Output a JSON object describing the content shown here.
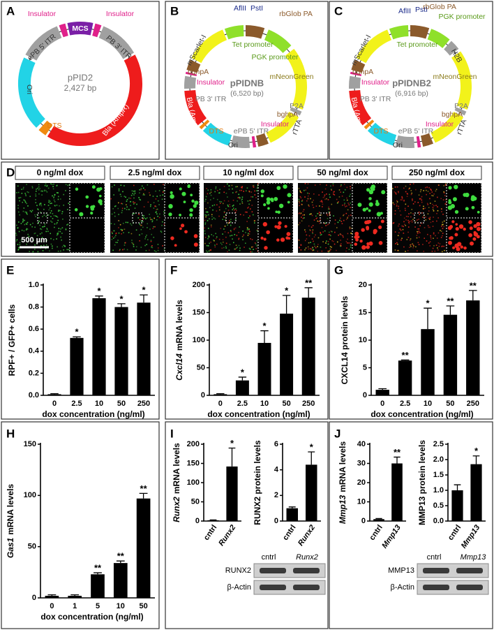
{
  "plasmid_maps": [
    {
      "label": "A",
      "labels": [
        "Insulator",
        "Insulator",
        "MCS",
        "ePB 5' ITR",
        "PB 3' ITR",
        "pPID2",
        "2,427 bp",
        "Ori",
        "DTS",
        "Bla (AmpR)"
      ]
    },
    {
      "label": "B",
      "labels": [
        "AflII",
        "PstI",
        "rbGlob PA",
        "Tet promoter",
        "PGK promoter",
        "mScarlet-I",
        "bghpA",
        "Insulator",
        "pPIDNB",
        "(6,520 bp)",
        "mNeonGreen",
        "PB 3' ITR",
        "P2A",
        "Bla (AmpR)",
        "DTS",
        "ePB 5' ITR",
        "Insulator",
        "bghpA",
        "rTTA",
        "Ori"
      ]
    },
    {
      "label": "C",
      "labels": [
        "AflII",
        "PstI",
        "rbGlob PA",
        "PGK promoter",
        "Tet promoter",
        "mScarlet-I",
        "H2B",
        "bghpA",
        "Insulator",
        "pPIDNB2",
        "(6,916 bp)",
        "mNeonGreen",
        "PB 3' ITR",
        "P2A",
        "Bla (AmpR)",
        "DTS",
        "ePB 5' ITR",
        "Insulator",
        "bghpA",
        "rTTA",
        "Ori"
      ]
    }
  ],
  "microscopy": {
    "label": "D",
    "conditions": [
      "0 ng/ml dox",
      "2.5 ng/ml dox",
      "10 ng/ml dox",
      "50 ng/ml dox",
      "250 ng/ml dox"
    ],
    "scale_bar": "500 µm"
  },
  "blots": [
    {
      "lanes": [
        "cntrl",
        "Runx2"
      ],
      "proteins": [
        "RUNX2",
        "β-Actin"
      ]
    },
    {
      "lanes": [
        "cntrl",
        "Mmp13"
      ],
      "proteins": [
        "MMP13",
        "β-Actin"
      ]
    }
  ],
  "chart_data": [
    {
      "type": "bar",
      "panel_label": "E",
      "ylabel": "RPF+ / GFP+ cells",
      "xlabel": "dox concentration (ng/ml)",
      "categories": [
        "0",
        "2.5",
        "10",
        "50",
        "250"
      ],
      "values": [
        0.01,
        0.52,
        0.88,
        0.8,
        0.84
      ],
      "errors": [
        0.005,
        0.01,
        0.02,
        0.03,
        0.07
      ],
      "significance": [
        null,
        "*",
        "*",
        "*",
        "*"
      ],
      "color": "#000000",
      "ylim": [
        0,
        1.0
      ],
      "yticks": [
        {
          "value": 0,
          "label": "0.0"
        },
        0.2,
        0.4,
        0.6,
        0.8,
        {
          "value": 1.0,
          "label": "1.0"
        }
      ]
    },
    {
      "type": "bar",
      "panel_label": "F",
      "ylabel_gene": "Cxcl14",
      "ylabel": "mRNA levels",
      "xlabel": "dox concentration (ng/ml)",
      "categories": [
        "0",
        "2.5",
        "10",
        "50",
        "250"
      ],
      "values": [
        2,
        27,
        95,
        148,
        177
      ],
      "errors": [
        1,
        6,
        22,
        33,
        18
      ],
      "significance": [
        null,
        "*",
        "*",
        "*",
        "**"
      ],
      "color": "#000000",
      "ylim": [
        0,
        200
      ],
      "yticks": [
        0,
        50,
        100,
        150,
        200
      ]
    },
    {
      "type": "bar",
      "panel_label": "G",
      "ylabel": "CXCL14 protein levels",
      "xlabel": "dox concentration (ng/ml)",
      "categories": [
        "0",
        "2.5",
        "10",
        "50",
        "250"
      ],
      "values": [
        1,
        6.3,
        12,
        14.6,
        17.2
      ],
      "errors": [
        0.2,
        0.1,
        3.8,
        1.6,
        1.8
      ],
      "significance": [
        null,
        "**",
        "*",
        "**",
        "**"
      ],
      "color": "#000000",
      "ylim": [
        0,
        20
      ],
      "yticks": [
        0,
        5,
        10,
        15,
        20
      ]
    },
    {
      "type": "bar",
      "panel_label": "H",
      "ylabel_gene": "Gas1",
      "ylabel": "mRNA levels",
      "xlabel": "dox concentration (ng/ml)",
      "categories": [
        "0",
        "1",
        "5",
        "10",
        "50"
      ],
      "values": [
        2,
        2,
        23,
        34,
        97
      ],
      "errors": [
        1,
        1,
        1.5,
        2,
        5
      ],
      "significance": [
        null,
        null,
        "**",
        "**",
        "**"
      ],
      "color": "#000000",
      "ylim": [
        0,
        150
      ],
      "yticks": [
        0,
        50,
        100,
        150
      ]
    },
    {
      "type": "bar",
      "panel_label": "I",
      "ylabel_gene": "Runx2",
      "ylabel": "mRNA levels",
      "categories": [
        "cntrl",
        "Runx2"
      ],
      "category_italic": [
        false,
        true
      ],
      "values": [
        2,
        142
      ],
      "errors": [
        1,
        48
      ],
      "significance": [
        null,
        "*"
      ],
      "color": "#000000",
      "ylim": [
        0,
        200
      ],
      "yticks": [
        0,
        50,
        100,
        150,
        200
      ]
    },
    {
      "type": "bar",
      "ylabel": "RUNX2 protein levels",
      "categories": [
        "cntrl",
        "Runx2"
      ],
      "category_italic": [
        false,
        true
      ],
      "values": [
        1,
        4.4
      ],
      "errors": [
        0.1,
        1.0
      ],
      "significance": [
        null,
        "*"
      ],
      "color": "#000000",
      "ylim": [
        0,
        6
      ],
      "yticks": [
        0,
        2,
        4,
        6
      ]
    },
    {
      "type": "bar",
      "panel_label": "J",
      "ylabel_gene": "Mmp13",
      "ylabel": "mRNA levels",
      "categories": [
        "cntrl",
        "Mmp13"
      ],
      "category_italic": [
        false,
        true
      ],
      "values": [
        1,
        30
      ],
      "errors": [
        0.3,
        3.3
      ],
      "significance": [
        null,
        "**"
      ],
      "color": "#000000",
      "ylim": [
        0,
        40
      ],
      "yticks": [
        0,
        10,
        20,
        30,
        40
      ]
    },
    {
      "type": "bar",
      "ylabel": "MMP13 protein levels",
      "categories": [
        "cntrl",
        "Mmp13"
      ],
      "category_italic": [
        false,
        true
      ],
      "values": [
        1,
        1.85
      ],
      "errors": [
        0.18,
        0.27
      ],
      "significance": [
        null,
        "*"
      ],
      "color": "#000000",
      "ylim": [
        0,
        2.5
      ],
      "yticks": [
        {
          "value": 0,
          "label": "0.0"
        },
        0.5,
        {
          "value": 1.0,
          "label": "1.0"
        },
        1.5,
        {
          "value": 2.0,
          "label": "2.0"
        },
        2.5
      ]
    }
  ]
}
